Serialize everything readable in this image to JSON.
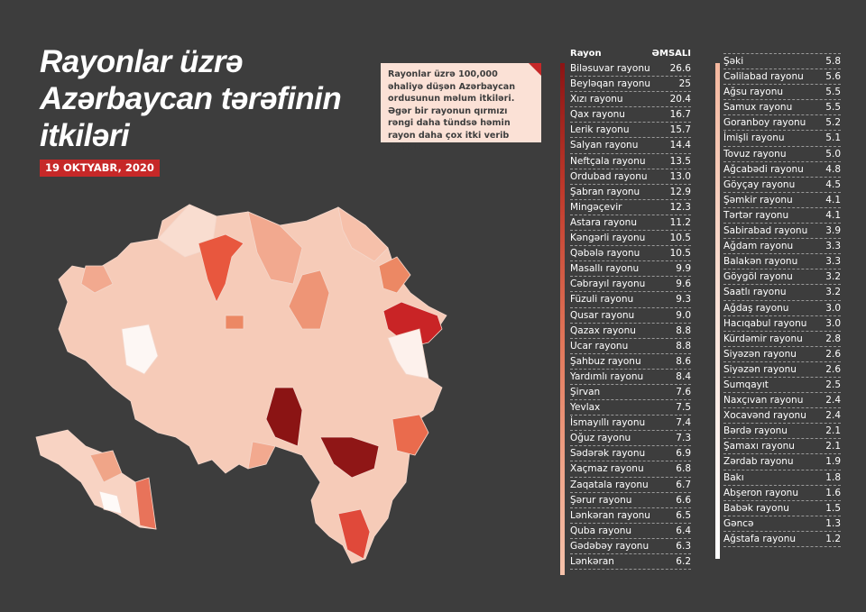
{
  "title": {
    "lines": [
      "Rayonlar üzrə",
      "Azərbaycan tərəfinin",
      "itkiləri"
    ]
  },
  "date": "19 OKTYABR, 2020",
  "note": "Rayonlar üzrə 100,000 əhaliyə düşən Azərbaycan ordusunun məlum itkiləri. Əgər bir rayonun qırmızı rəngi daha tündsə həmin rayon daha çox itki verib demək.",
  "colors": {
    "background": "#3d3d3d",
    "accent": "#c62828",
    "note_bg": "#fbe1d6"
  },
  "table": {
    "header": {
      "name": "Rayon",
      "value": "ƏMSALI"
    },
    "column1": [
      {
        "name": "Biləsuvar rayonu",
        "value": "26.6"
      },
      {
        "name": "Beyləqan rayonu",
        "value": "25"
      },
      {
        "name": "Xızı rayonu",
        "value": "20.4"
      },
      {
        "name": "Qax rayonu",
        "value": "16.7"
      },
      {
        "name": "Lerik rayonu",
        "value": "15.7"
      },
      {
        "name": "Salyan rayonu",
        "value": "14.4"
      },
      {
        "name": "Neftçala rayonu",
        "value": "13.5"
      },
      {
        "name": "Ordubad rayonu",
        "value": "13.0"
      },
      {
        "name": "Şabran rayonu",
        "value": "12.9"
      },
      {
        "name": "Mingəçevir",
        "value": "12.3"
      },
      {
        "name": "Astara rayonu",
        "value": "11.2"
      },
      {
        "name": "Kəngərli rayonu",
        "value": "10.5"
      },
      {
        "name": "Qəbələ rayonu",
        "value": "10.5"
      },
      {
        "name": "Masallı rayonu",
        "value": "9.9"
      },
      {
        "name": "Cəbrayıl rayonu",
        "value": "9.6"
      },
      {
        "name": "Füzuli rayonu",
        "value": "9.3"
      },
      {
        "name": "Qusar rayonu",
        "value": "9.0"
      },
      {
        "name": "Qazax rayonu",
        "value": "8.8"
      },
      {
        "name": "Ucar rayonu",
        "value": "8.8"
      },
      {
        "name": "Şahbuz rayonu",
        "value": "8.6"
      },
      {
        "name": "Yardımlı rayonu",
        "value": "8.4"
      },
      {
        "name": "Şirvan",
        "value": "7.6"
      },
      {
        "name": "Yevlax",
        "value": "7.5"
      },
      {
        "name": "İsmayıllı rayonu",
        "value": "7.4"
      },
      {
        "name": "Oğuz rayonu",
        "value": "7.3"
      },
      {
        "name": "Sədərək rayonu",
        "value": "6.9"
      },
      {
        "name": "Xaçmaz rayonu",
        "value": "6.8"
      },
      {
        "name": "Zaqatala rayonu",
        "value": "6.7"
      },
      {
        "name": "Şərur rayonu",
        "value": "6.6"
      },
      {
        "name": "Lənkəran rayonu",
        "value": "6.5"
      },
      {
        "name": "Quba rayonu",
        "value": "6.4"
      },
      {
        "name": "Gədəbəy rayonu",
        "value": "6.3"
      },
      {
        "name": "Lənkəran",
        "value": "6.2"
      }
    ],
    "column2": [
      {
        "name": "Şəki",
        "value": "5.8"
      },
      {
        "name": "Cəlilabad rayonu",
        "value": "5.6"
      },
      {
        "name": "Ağsu rayonu",
        "value": "5.5"
      },
      {
        "name": "Samux rayonu",
        "value": "5.5"
      },
      {
        "name": "Goranboy rayonu",
        "value": "5.2"
      },
      {
        "name": "İmişli rayonu",
        "value": "5.1"
      },
      {
        "name": "Tovuz rayonu",
        "value": "5.0"
      },
      {
        "name": "Ağcabədi rayonu",
        "value": "4.8"
      },
      {
        "name": "Göyçay rayonu",
        "value": "4.5"
      },
      {
        "name": "Şəmkir rayonu",
        "value": "4.1"
      },
      {
        "name": "Tərtər rayonu",
        "value": "4.1"
      },
      {
        "name": "Sabirabad rayonu",
        "value": "3.9"
      },
      {
        "name": "Ağdam rayonu",
        "value": "3.3"
      },
      {
        "name": "Balakən rayonu",
        "value": "3.3"
      },
      {
        "name": "Göygöl rayonu",
        "value": "3.2"
      },
      {
        "name": "Saatlı rayonu",
        "value": "3.2"
      },
      {
        "name": "Ağdaş rayonu",
        "value": "3.0"
      },
      {
        "name": "Hacıqabul rayonu",
        "value": "3.0"
      },
      {
        "name": "Kürdəmir rayonu",
        "value": "2.8"
      },
      {
        "name": "Siyəzən rayonu",
        "value": "2.6"
      },
      {
        "name": "Siyəzən rayonu",
        "value": "2.6"
      },
      {
        "name": "Sumqayıt",
        "value": "2.5"
      },
      {
        "name": "Naxçıvan rayonu",
        "value": "2.4"
      },
      {
        "name": "Xocavənd rayonu",
        "value": "2.4"
      },
      {
        "name": "Bərdə rayonu",
        "value": "2.1"
      },
      {
        "name": "Şamaxı rayonu",
        "value": "2.1"
      },
      {
        "name": "Zərdab rayonu",
        "value": "1.9"
      },
      {
        "name": "Bakı",
        "value": "1.8"
      },
      {
        "name": "Abşeron rayonu",
        "value": "1.6"
      },
      {
        "name": "Babək rayonu",
        "value": "1.5"
      },
      {
        "name": "Gəncə",
        "value": "1.3"
      },
      {
        "name": "Ağstafa rayonu",
        "value": "1.2"
      }
    ]
  }
}
